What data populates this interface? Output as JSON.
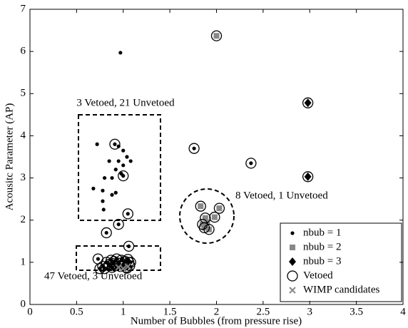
{
  "chart_data": {
    "type": "scatter",
    "xlabel": "Number of Bubbles (from pressure rise)",
    "ylabel": "Acousitc Parameter (AP)",
    "xlim": [
      0,
      4
    ],
    "ylim": [
      0,
      7
    ],
    "xticks": [
      0,
      0.5,
      1,
      1.5,
      2,
      2.5,
      3,
      3.5,
      4
    ],
    "yticks": [
      0,
      1,
      2,
      3,
      4,
      5,
      6,
      7
    ],
    "grid": false,
    "legend": "lower right",
    "annotations": [
      "3 Vetoed, 21 Unvetoed",
      "8 Vetoed, 1 Unvetoed",
      "47 Vetoed, 3 Unvetoed"
    ],
    "series": [
      {
        "name": "nbub = 1",
        "color": "#000000",
        "marker": "dot",
        "x": [
          0.97,
          0.72,
          0.91,
          0.95,
          1.0,
          1.04,
          1.08,
          0.85,
          0.95,
          1.0,
          0.92,
          0.98,
          1.0,
          0.88,
          0.8,
          0.78,
          0.68,
          0.78,
          0.88,
          0.92,
          0.79,
          1.05,
          0.82,
          0.95,
          1.06,
          1.76,
          2.37,
          0.73,
          0.78,
          0.82,
          0.85,
          0.87,
          0.88,
          0.9,
          0.92,
          0.93,
          0.95,
          0.97,
          0.98,
          1.0,
          1.02,
          1.03,
          1.05,
          1.07,
          1.08,
          0.8,
          0.86,
          0.9,
          0.94,
          0.99,
          1.04,
          0.75,
          0.84,
          0.96,
          1.01,
          1.06,
          0.89
        ],
        "values": [
          5.97,
          3.8,
          3.8,
          3.75,
          3.65,
          3.5,
          3.4,
          3.4,
          3.4,
          3.3,
          3.2,
          3.1,
          3.05,
          3.0,
          3.0,
          2.7,
          2.75,
          2.45,
          2.6,
          2.65,
          2.25,
          2.15,
          1.7,
          1.9,
          1.38,
          3.7,
          3.35,
          1.08,
          0.9,
          1.0,
          0.95,
          1.05,
          0.88,
          1.02,
          0.92,
          1.08,
          0.98,
          0.9,
          1.05,
          0.95,
          1.02,
          0.88,
          1.07,
          0.92,
          1.0,
          0.85,
          0.92,
          0.83,
          0.85,
          1.1,
          0.86,
          0.85,
          0.83,
          0.95,
          0.9,
          1.0,
          0.97
        ]
      },
      {
        "name": "nbub = 2",
        "color": "#888888",
        "marker": "square",
        "x": [
          2.0,
          1.83,
          2.03,
          1.98,
          1.88,
          1.85,
          1.87,
          1.92,
          1.9
        ],
        "values": [
          6.37,
          2.33,
          2.28,
          2.07,
          2.05,
          1.9,
          1.82,
          1.78,
          1.95
        ]
      },
      {
        "name": "nbub = 3",
        "color": "#000000",
        "marker": "diamond",
        "x": [
          2.98,
          2.98
        ],
        "values": [
          4.78,
          3.03
        ]
      },
      {
        "name": "Vetoed",
        "color": "#000000",
        "marker": "circle",
        "x": [
          0.91,
          1.0,
          1.05,
          0.82,
          0.95,
          1.06,
          1.76,
          2.37,
          2.0,
          1.83,
          2.03,
          1.98,
          1.88,
          1.85,
          1.87,
          1.92,
          2.98,
          2.98,
          0.73,
          0.78,
          0.82,
          0.85,
          0.87,
          0.88,
          0.9,
          0.92,
          0.93,
          0.95,
          0.97,
          0.98,
          1.0,
          1.02,
          1.03,
          1.05,
          1.07,
          1.08,
          0.8,
          0.75,
          1.04,
          1.06,
          0.89
        ],
        "values": [
          3.8,
          3.05,
          2.15,
          1.7,
          1.9,
          1.38,
          3.7,
          3.35,
          6.37,
          2.33,
          2.28,
          2.07,
          2.05,
          1.9,
          1.82,
          1.78,
          4.78,
          3.03,
          1.08,
          0.9,
          1.0,
          0.95,
          1.05,
          0.88,
          1.02,
          0.92,
          1.08,
          0.98,
          0.9,
          1.05,
          0.95,
          1.02,
          0.88,
          1.07,
          0.92,
          1.0,
          0.85,
          0.85,
          0.86,
          1.0,
          0.97
        ]
      },
      {
        "name": "WIMP candidates",
        "color": "#888888",
        "marker": "x",
        "x": [
          1.0,
          1.05,
          0.95
        ],
        "values": [
          0.85,
          0.9,
          0.88
        ]
      }
    ]
  }
}
